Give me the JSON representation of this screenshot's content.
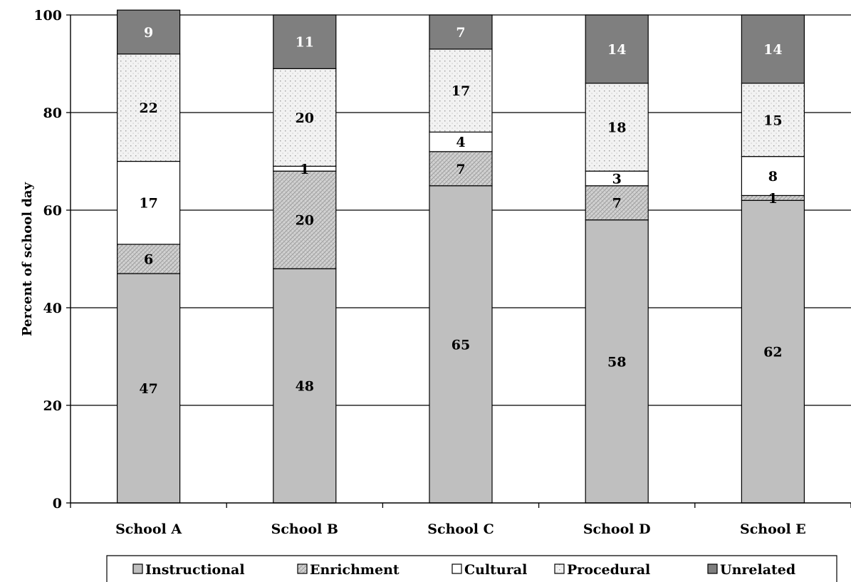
{
  "chart_data": {
    "type": "bar",
    "stacked": true,
    "title": "",
    "xlabel": "",
    "ylabel": "Percent of school day",
    "ylim": [
      0,
      100
    ],
    "yticks": [
      0,
      20,
      40,
      60,
      80,
      100
    ],
    "grid": true,
    "legend_position": "bottom",
    "categories": [
      "School A",
      "School B",
      "School C",
      "School D",
      "School E"
    ],
    "series": [
      {
        "name": "Instructional",
        "values": [
          47,
          48,
          65,
          58,
          62
        ],
        "color": "#bfbfbf",
        "pattern": "solid"
      },
      {
        "name": "Enrichment",
        "values": [
          6,
          20,
          7,
          7,
          1
        ],
        "color": "#cfcfcf",
        "pattern": "crosshatch"
      },
      {
        "name": "Cultural",
        "values": [
          17,
          1,
          4,
          3,
          8
        ],
        "color": "#ffffff",
        "pattern": "solid"
      },
      {
        "name": "Procedural",
        "values": [
          22,
          20,
          17,
          18,
          15
        ],
        "color": "#f2f2f2",
        "pattern": "dots"
      },
      {
        "name": "Unrelated",
        "values": [
          9,
          11,
          7,
          14,
          14
        ],
        "color": "#7f7f7f",
        "pattern": "solid"
      }
    ]
  }
}
